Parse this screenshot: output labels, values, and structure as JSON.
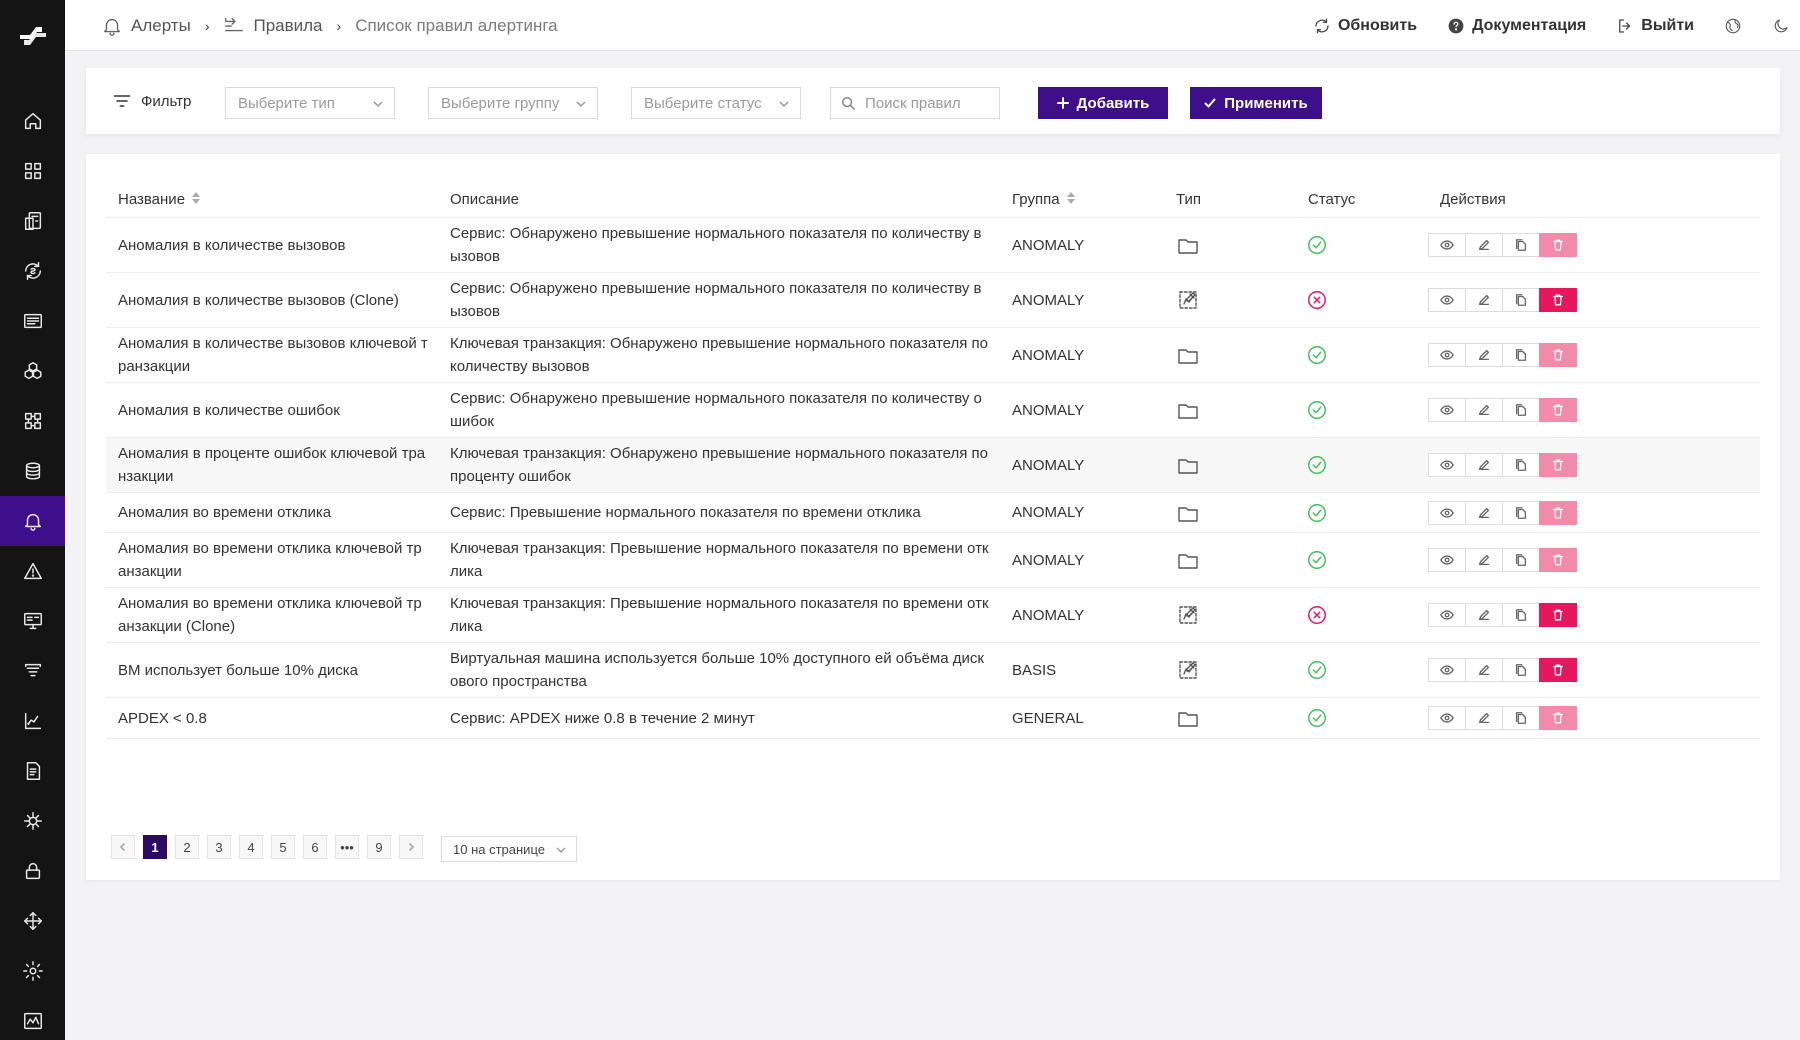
{
  "header": {
    "breadcrumbs": [
      {
        "label": "Алерты",
        "icon": "bell-icon"
      },
      {
        "label": "Правила",
        "icon": "rules-icon"
      },
      {
        "label": "Список правил алертинга"
      }
    ],
    "actions": {
      "refresh": "Обновить",
      "docs": "Документация",
      "logout": "Выйти"
    }
  },
  "sidebar": {
    "items": [
      "home-icon",
      "dashboard-icon",
      "services-icon",
      "sync-icon",
      "logs-icon",
      "hexagons-icon",
      "apps-icon",
      "database-icon",
      "bell-icon",
      "warning-icon",
      "monitor-icon",
      "list-filter-icon",
      "chart-icon",
      "document-icon",
      "network-icon",
      "lock-icon",
      "integration-icon",
      "settings-icon",
      "activity-icon"
    ],
    "active_index": 8
  },
  "filter": {
    "label": "Фильтр",
    "type_placeholder": "Выберите тип",
    "group_placeholder": "Выберите группу",
    "status_placeholder": "Выберите статус",
    "search_placeholder": "Поиск правил",
    "add_label": "Добавить",
    "apply_label": "Применить"
  },
  "table": {
    "columns": {
      "name": "Название",
      "description": "Описание",
      "group": "Группа",
      "type": "Тип",
      "status": "Статус",
      "actions": "Действия"
    },
    "rows": [
      {
        "name": "Аномалия в количестве вызовов",
        "description": "Сервис: Обнаружено превышение нормального показателя по количеству вызовов",
        "group": "ANOMALY",
        "type": "folder-icon",
        "status": "ok",
        "delete_active": false
      },
      {
        "name": "Аномалия в количестве вызовов (Clone)",
        "description": "Сервис: Обнаружено превышение нормального показателя по количеству вызовов",
        "group": "ANOMALY",
        "type": "edit-image-icon",
        "status": "error",
        "delete_active": true
      },
      {
        "name": "Аномалия в количестве вызовов ключевой транзакции",
        "description": "Ключевая транзакция: Обнаружено превышение нормального показателя по количеству вызовов",
        "group": "ANOMALY",
        "type": "folder-icon",
        "status": "ok",
        "delete_active": false
      },
      {
        "name": "Аномалия в количестве ошибок",
        "description": "Сервис: Обнаружено превышение нормального показателя по количеству ошибок",
        "group": "ANOMALY",
        "type": "folder-icon",
        "status": "ok",
        "delete_active": false
      },
      {
        "name": "Аномалия в проценте ошибок ключевой транзакции",
        "description": "Ключевая транзакция: Обнаружено превышение нормального показателя по проценту ошибок",
        "group": "ANOMALY",
        "type": "folder-icon",
        "status": "ok",
        "delete_active": false
      },
      {
        "name": "Аномалия во времени отклика",
        "description": "Сервис: Превышение нормального показателя по времени отклика",
        "group": "ANOMALY",
        "type": "folder-icon",
        "status": "ok",
        "delete_active": false
      },
      {
        "name": "Аномалия во времени отклика ключевой транзакции",
        "description": "Ключевая транзакция: Превышение нормального показателя по времени отклика",
        "group": "ANOMALY",
        "type": "folder-icon",
        "status": "ok",
        "delete_active": false
      },
      {
        "name": "Аномалия во времени отклика ключевой транзакции (Clone)",
        "description": "Ключевая транзакция: Превышение нормального показателя по времени отклика",
        "group": "ANOMALY",
        "type": "edit-image-icon",
        "status": "error",
        "delete_active": true
      },
      {
        "name": "ВМ использует больше 10% диска",
        "description": "Виртуальная машина используется больше 10% доступного ей объёма дискового пространства",
        "group": "BASIS",
        "type": "edit-image-icon",
        "status": "ok",
        "delete_active": true
      },
      {
        "name": "APDEX < 0.8",
        "description": "Сервис: APDEX ниже 0.8 в течение 2 минут",
        "group": "GENERAL",
        "type": "folder-icon",
        "status": "ok",
        "delete_active": false
      }
    ]
  },
  "pagination": {
    "pages": [
      "1",
      "2",
      "3",
      "4",
      "5",
      "6",
      "•••",
      "9"
    ],
    "current": "1",
    "page_size_label": "10 на странице"
  },
  "colors": {
    "accent": "#3d0f8a",
    "status_ok": "#3fbf5a",
    "status_error": "#e6175c",
    "delete_active": "#e6175c",
    "delete_inactive": "#f28aa9"
  }
}
